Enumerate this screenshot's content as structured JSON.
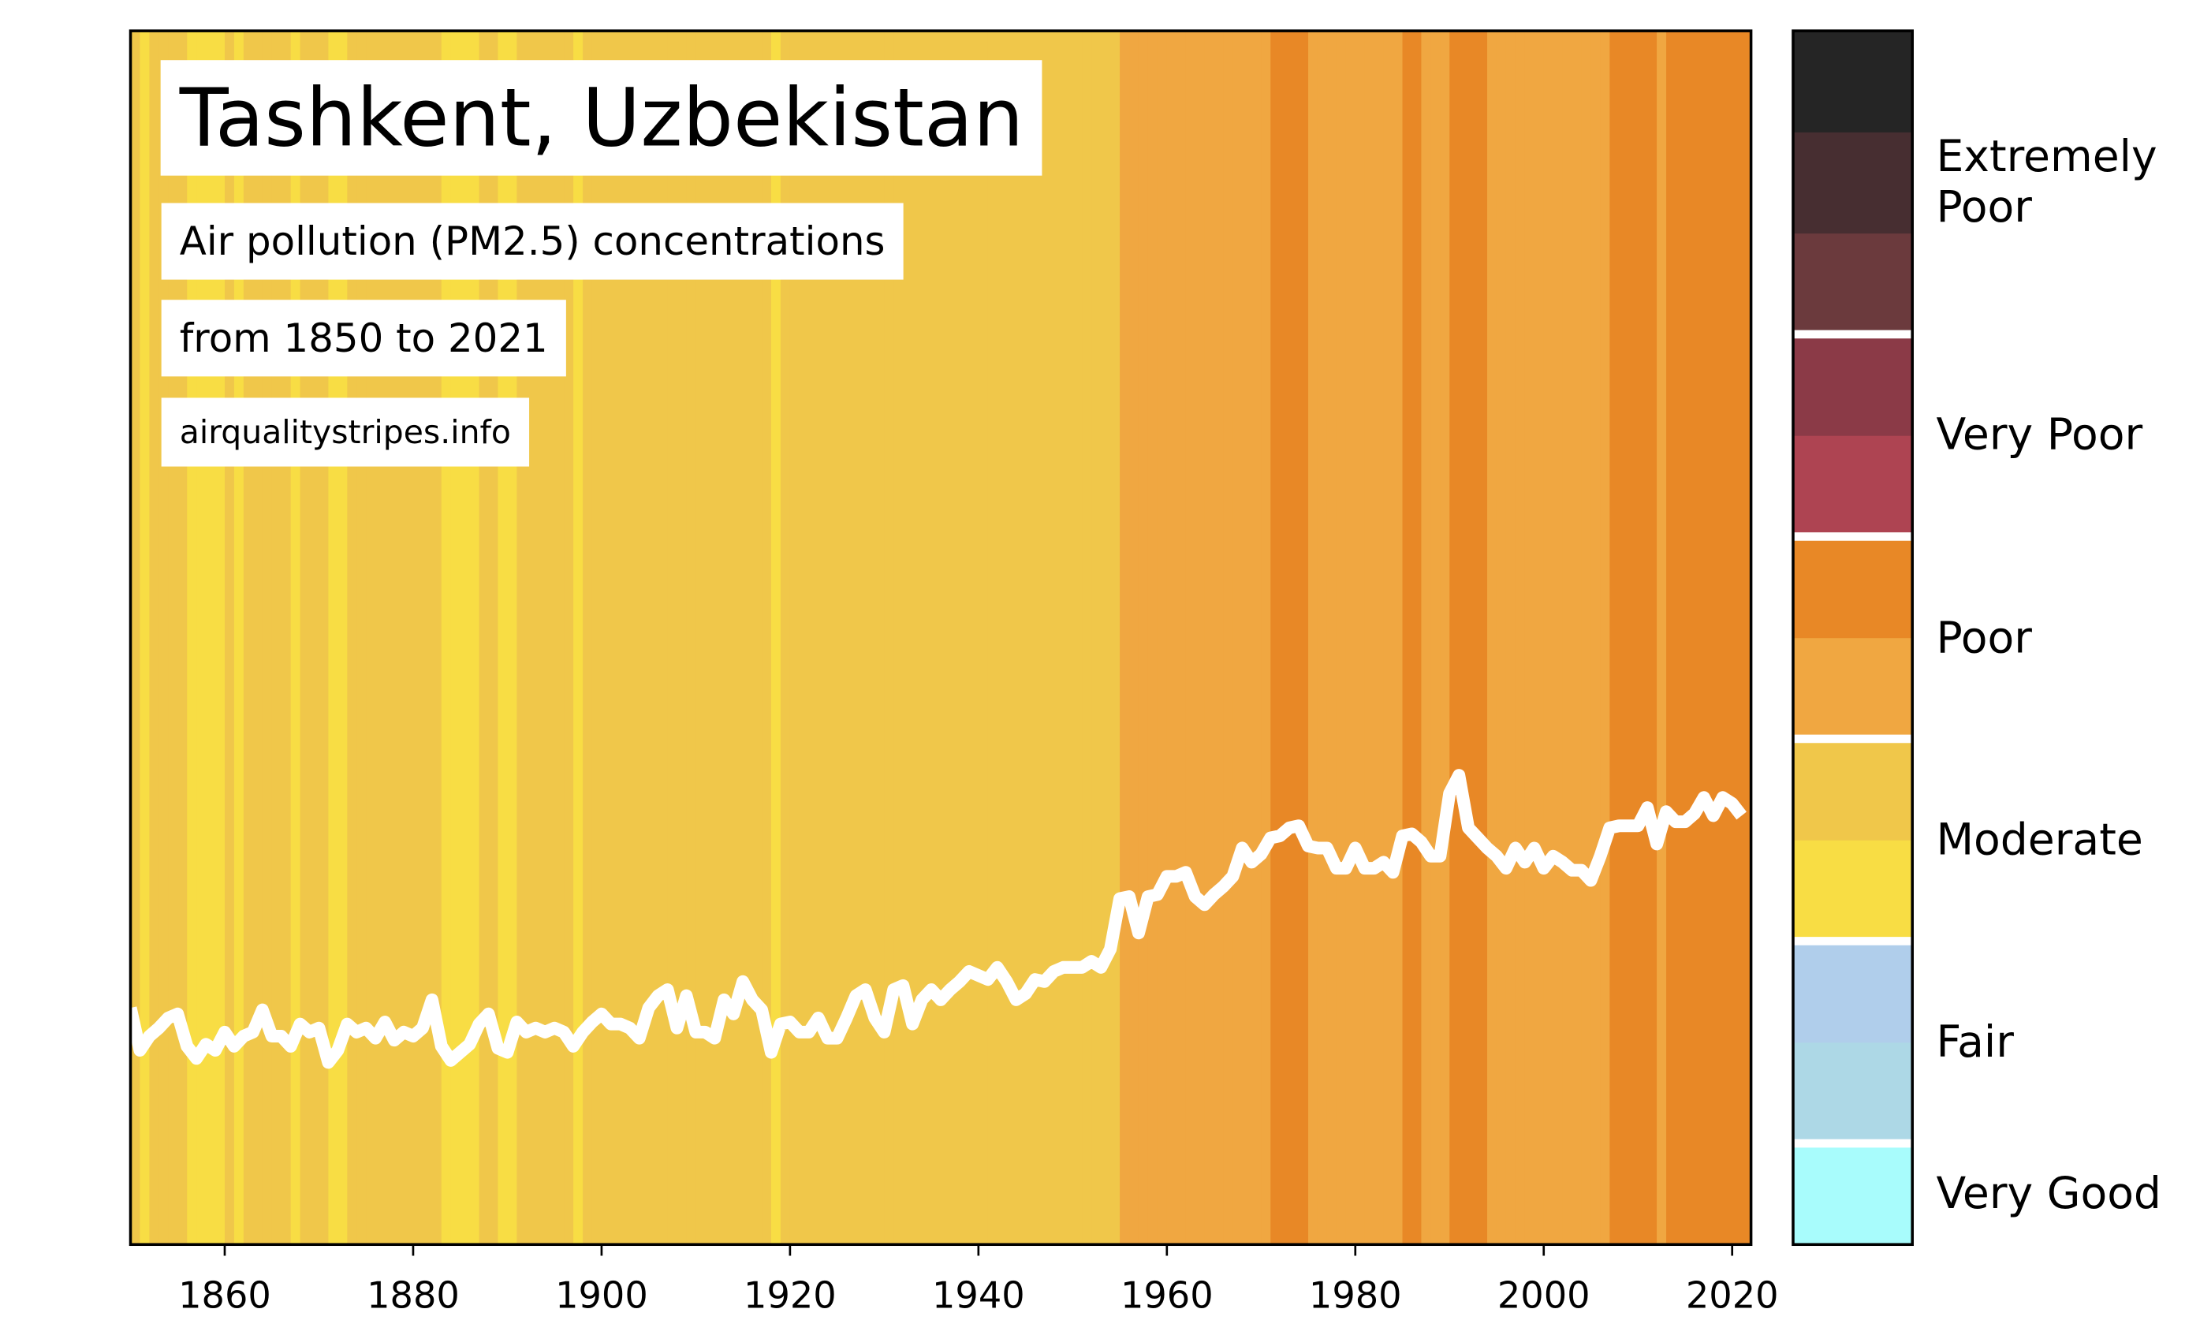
{
  "chart_data": {
    "type": "stripes",
    "title": "Tashkent, Uzbekistan",
    "subtitle": [
      "Air pollution (PM2.5) concentrations",
      "from 1850 to 2021"
    ],
    "source": "airqualitystripes.info",
    "x": [
      1850,
      1851,
      1852,
      1853,
      1854,
      1855,
      1856,
      1857,
      1858,
      1859,
      1860,
      1861,
      1862,
      1863,
      1864,
      1865,
      1866,
      1867,
      1868,
      1869,
      1870,
      1871,
      1872,
      1873,
      1874,
      1875,
      1876,
      1877,
      1878,
      1879,
      1880,
      1881,
      1882,
      1883,
      1884,
      1885,
      1886,
      1887,
      1888,
      1889,
      1890,
      1891,
      1892,
      1893,
      1894,
      1895,
      1896,
      1897,
      1898,
      1899,
      1900,
      1901,
      1902,
      1903,
      1904,
      1905,
      1906,
      1907,
      1908,
      1909,
      1910,
      1911,
      1912,
      1913,
      1914,
      1915,
      1916,
      1917,
      1918,
      1919,
      1920,
      1921,
      1922,
      1923,
      1924,
      1925,
      1926,
      1927,
      1928,
      1929,
      1930,
      1931,
      1932,
      1933,
      1934,
      1935,
      1936,
      1937,
      1938,
      1939,
      1940,
      1941,
      1942,
      1943,
      1944,
      1945,
      1946,
      1947,
      1948,
      1949,
      1950,
      1951,
      1952,
      1953,
      1954,
      1955,
      1956,
      1957,
      1958,
      1959,
      1960,
      1961,
      1962,
      1963,
      1964,
      1965,
      1966,
      1967,
      1968,
      1969,
      1970,
      1971,
      1972,
      1973,
      1974,
      1975,
      1976,
      1977,
      1978,
      1979,
      1980,
      1981,
      1982,
      1983,
      1984,
      1985,
      1986,
      1987,
      1988,
      1989,
      1990,
      1991,
      1992,
      1993,
      1994,
      1995,
      1996,
      1997,
      1998,
      1999,
      2000,
      2001,
      2002,
      2003,
      2004,
      2005,
      2006,
      2007,
      2008,
      2009,
      2010,
      2011,
      2012,
      2013,
      2014,
      2015,
      2016,
      2017,
      2018,
      2019,
      2020,
      2021
    ],
    "values": [
      21.7,
      19.6,
      20.3,
      20.7,
      21.2,
      21.4,
      19.8,
      19.2,
      19.9,
      19.6,
      20.5,
      19.8,
      20.3,
      20.5,
      21.6,
      20.3,
      20.3,
      19.8,
      20.9,
      20.5,
      20.7,
      19.0,
      19.6,
      20.9,
      20.5,
      20.7,
      20.2,
      21.0,
      20.1,
      20.5,
      20.3,
      20.7,
      22.1,
      19.8,
      19.1,
      19.5,
      19.9,
      20.9,
      21.4,
      19.7,
      19.5,
      21.0,
      20.5,
      20.7,
      20.5,
      20.7,
      20.5,
      19.8,
      20.5,
      21.0,
      21.4,
      20.9,
      20.9,
      20.7,
      20.2,
      21.7,
      22.3,
      22.6,
      20.7,
      22.3,
      20.5,
      20.5,
      20.2,
      22.1,
      21.4,
      23.0,
      22.1,
      21.6,
      19.5,
      20.9,
      21.0,
      20.5,
      20.5,
      21.2,
      20.2,
      20.2,
      21.2,
      22.3,
      22.6,
      21.2,
      20.5,
      22.6,
      22.8,
      20.9,
      22.1,
      22.6,
      22.1,
      22.6,
      23.0,
      23.5,
      23.3,
      23.1,
      23.7,
      23.0,
      22.1,
      22.4,
      23.1,
      23.0,
      23.5,
      23.7,
      23.7,
      23.7,
      24.0,
      23.7,
      24.6,
      27.1,
      27.2,
      25.4,
      27.2,
      27.3,
      28.2,
      28.2,
      28.4,
      27.2,
      26.8,
      27.3,
      27.7,
      28.2,
      29.6,
      28.9,
      29.3,
      30.1,
      30.2,
      30.6,
      30.7,
      29.7,
      29.6,
      29.6,
      28.6,
      28.6,
      29.6,
      28.6,
      28.6,
      28.9,
      28.4,
      30.2,
      30.3,
      29.9,
      29.2,
      29.2,
      32.3,
      33.2,
      30.6,
      30.1,
      29.6,
      29.2,
      28.6,
      29.6,
      28.9,
      29.6,
      28.6,
      29.2,
      28.9,
      28.5,
      28.5,
      28.0,
      29.2,
      30.6,
      30.7,
      30.7,
      30.7,
      31.6,
      29.8,
      31.4,
      30.9,
      30.9,
      31.3,
      32.1,
      31.2,
      32.1,
      31.8,
      31.2
    ],
    "line_color": "#ffffff",
    "xlim": [
      1850,
      2022
    ],
    "xticks": [
      1860,
      1880,
      1900,
      1920,
      1940,
      1960,
      1980,
      2000,
      2020
    ],
    "ylim": [
      10,
      70
    ],
    "colorbar": {
      "colors": [
        "#a8fcfc",
        "#add8e6",
        "#b0ceeb",
        "#f8dd44",
        "#f0c74a",
        "#f0a741",
        "#e88826",
        "#ae4452",
        "#8b3a47",
        "#6b3a3d",
        "#472e31",
        "#252525"
      ],
      "bounds": [
        0,
        5,
        10,
        15,
        20,
        25,
        30,
        35,
        40,
        45,
        50,
        55,
        60
      ],
      "labels": [
        "Very Good",
        "Fair",
        "Moderate",
        "Poor",
        "Very Poor",
        "Extremely Poor"
      ],
      "label_bounds": [
        0,
        5,
        15,
        25,
        35,
        45,
        60
      ]
    }
  }
}
